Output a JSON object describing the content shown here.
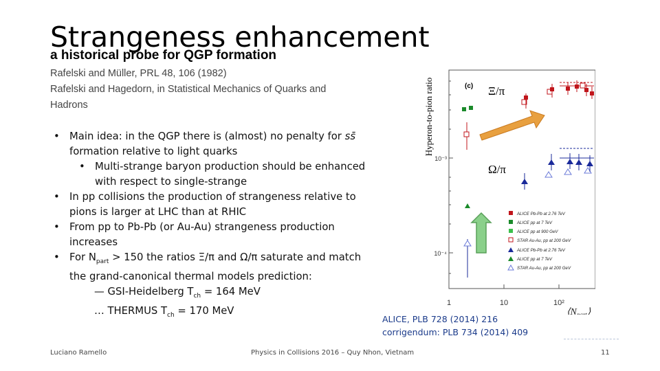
{
  "slide": {
    "title": "Strangeness enhancement",
    "subtitle": "a historical probe for QGP formation",
    "references": [
      "Rafelski and Müller, PRL 48, 106 (1982)",
      "Rafelski and Hagedorn, in Statistical Mechanics of Quarks and Hadrons"
    ]
  },
  "bullets": {
    "b1a": "Main idea: in the QGP there is (almost) no penalty for ",
    "b1b": "s",
    "b1c": "s̄",
    "b1d": "formation relative to light quarks",
    "b2": "Multi-strange baryon production should be enhanced with respect to single-strange",
    "b3": "In pp collisions the production of strangeness relative to pions is larger at LHC than at RHIC",
    "b4": "From pp to Pb-Pb (or Au-Au) strangeness production increases",
    "b5a": "For N",
    "b5b": "part",
    "b5c": " > 150 the ratios Ξ/π and Ω/π saturate and match the grand-canonical thermal models prediction:",
    "s1a": "— GSI-Heidelberg T",
    "s1b": "ch",
    "s1c": " = 164 MeV",
    "s2a": "… THERMUS T",
    "s2b": "ch",
    "s2c": " = 170 MeV"
  },
  "citation": {
    "line1": "ALICE, PLB 728 (2014) 216",
    "line2": "corrigendum: PLB 734 (2014) 409"
  },
  "footer": {
    "author": "Luciano Ramello",
    "event": "Physics in Collisions 2016 – Quy Nhon, Vietnam",
    "page": "11"
  },
  "figure": {
    "ylabel": "Hyperon-to-pion ratio",
    "panel": "(c)",
    "xi_label": "Ξ/π",
    "omega_label": "Ω/π",
    "ytick_1e3": "10⁻³",
    "ytick_1e4": "10⁻⁴",
    "xticks": [
      "1",
      "10",
      "10²"
    ],
    "xlabel_a": "⟨N",
    "xlabel_b": "part",
    "xlabel_c": "⟩",
    "legend": [
      "ALICE Pb-Pb at 2.76 TeV",
      "ALICE pp at 7 TeV",
      "ALICE pp at 900 GeV",
      "STAR Au-Au, pp at 200 GeV",
      "ALICE Pb-Pb at 2.76 TeV",
      "ALICE pp at 7 TeV",
      "STAR Au-Au, pp at 200 GeV"
    ],
    "colors": {
      "red": "#c0151b",
      "green": "#1a8a2a",
      "blue": "#1a2a9a",
      "arrow_orange": "#e8a040",
      "arrow_green": "#8ad08a"
    }
  }
}
